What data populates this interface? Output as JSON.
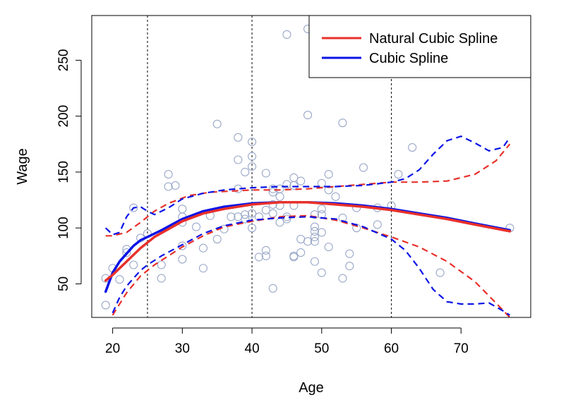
{
  "chart_data": {
    "type": "scatter",
    "xlabel": "Age",
    "ylabel": "Wage",
    "xlim": [
      17,
      80
    ],
    "ylim": [
      20,
      290
    ],
    "x_ticks": [
      20,
      30,
      40,
      50,
      60,
      70
    ],
    "y_ticks": [
      50,
      100,
      150,
      200,
      250
    ],
    "knots": [
      25,
      40,
      60
    ],
    "legend_position": "top-right",
    "legend": [
      {
        "label": "Natural Cubic Spline",
        "color": "#e8302a"
      },
      {
        "label": "Cubic Spline",
        "color": "#0a14e6"
      }
    ],
    "points_color": "#9aa8c8",
    "points": [
      [
        19,
        31
      ],
      [
        19,
        55
      ],
      [
        20,
        64
      ],
      [
        21,
        54
      ],
      [
        22,
        78
      ],
      [
        22,
        81
      ],
      [
        23,
        67
      ],
      [
        23,
        118
      ],
      [
        24,
        91
      ],
      [
        25,
        95
      ],
      [
        27,
        67
      ],
      [
        27,
        55
      ],
      [
        28,
        137
      ],
      [
        28,
        148
      ],
      [
        29,
        138
      ],
      [
        30,
        117
      ],
      [
        30,
        110
      ],
      [
        30,
        105
      ],
      [
        30,
        84
      ],
      [
        30,
        72
      ],
      [
        32,
        101
      ],
      [
        33,
        82
      ],
      [
        33,
        64
      ],
      [
        34,
        111
      ],
      [
        35,
        193
      ],
      [
        35,
        90
      ],
      [
        36,
        99
      ],
      [
        37,
        110
      ],
      [
        38,
        181
      ],
      [
        38,
        161
      ],
      [
        38,
        135
      ],
      [
        38,
        110
      ],
      [
        39,
        112
      ],
      [
        39,
        108
      ],
      [
        39,
        150
      ],
      [
        40,
        177
      ],
      [
        40,
        164
      ],
      [
        40,
        155
      ],
      [
        40,
        113
      ],
      [
        40,
        100
      ],
      [
        41,
        110
      ],
      [
        41,
        74
      ],
      [
        42,
        149
      ],
      [
        42,
        116
      ],
      [
        42,
        80
      ],
      [
        42,
        75
      ],
      [
        43,
        135
      ],
      [
        43,
        132
      ],
      [
        43,
        121
      ],
      [
        43,
        113
      ],
      [
        43,
        46
      ],
      [
        44,
        135
      ],
      [
        44,
        128
      ],
      [
        44,
        120
      ],
      [
        44,
        105
      ],
      [
        45,
        273
      ],
      [
        45,
        139
      ],
      [
        45,
        110
      ],
      [
        45,
        108
      ],
      [
        46,
        145
      ],
      [
        46,
        138
      ],
      [
        46,
        120
      ],
      [
        46,
        75
      ],
      [
        46,
        74
      ],
      [
        47,
        142
      ],
      [
        47,
        78
      ],
      [
        47,
        90
      ],
      [
        48,
        278
      ],
      [
        48,
        201
      ],
      [
        48,
        88
      ],
      [
        49,
        101
      ],
      [
        49,
        97
      ],
      [
        49,
        92
      ],
      [
        49,
        88
      ],
      [
        49,
        70
      ],
      [
        49,
        112
      ],
      [
        50,
        140
      ],
      [
        50,
        117
      ],
      [
        50,
        60
      ],
      [
        50,
        96
      ],
      [
        50,
        112
      ],
      [
        51,
        282
      ],
      [
        51,
        148
      ],
      [
        51,
        134
      ],
      [
        51,
        83
      ],
      [
        52,
        128
      ],
      [
        53,
        194
      ],
      [
        53,
        109
      ],
      [
        53,
        55
      ],
      [
        54,
        77
      ],
      [
        54,
        66
      ],
      [
        55,
        118
      ],
      [
        55,
        100
      ],
      [
        56,
        154
      ],
      [
        58,
        118
      ],
      [
        58,
        103
      ],
      [
        60,
        120
      ],
      [
        61,
        148
      ],
      [
        63,
        172
      ],
      [
        67,
        60
      ],
      [
        77,
        100
      ]
    ],
    "series": [
      {
        "name": "Natural Cubic Spline",
        "color": "#e8302a",
        "x": [
          19,
          20,
          22,
          24,
          26,
          28,
          30,
          33,
          36,
          40,
          44,
          48,
          52,
          56,
          60,
          64,
          68,
          72,
          77
        ],
        "y": [
          53,
          58,
          70,
          82,
          92,
          99,
          106,
          113,
          117,
          121,
          123,
          123,
          121,
          119,
          116,
          112,
          108,
          103,
          97
        ]
      },
      {
        "name": "Cubic Spline",
        "color": "#0a14e6",
        "x": [
          19,
          20,
          21,
          22,
          23,
          24,
          25,
          27,
          30,
          33,
          36,
          40,
          44,
          48,
          52,
          56,
          60,
          64,
          68,
          72,
          77
        ],
        "y": [
          43,
          60,
          70,
          77,
          84,
          89,
          92,
          98,
          108,
          115,
          119,
          122,
          123,
          123,
          122,
          120,
          117,
          113,
          109,
          104,
          98
        ]
      }
    ],
    "confidence_bands": [
      {
        "name": "Natural Cubic Spline upper",
        "color": "#e8302a",
        "x": [
          19,
          20,
          22,
          24,
          26,
          28,
          31,
          34,
          37,
          40,
          44,
          48,
          52,
          56,
          60,
          64,
          68,
          72,
          75,
          77
        ],
        "y": [
          93,
          93,
          96,
          105,
          115,
          122,
          129,
          132,
          133,
          134,
          134,
          135,
          137,
          139,
          141,
          141,
          142,
          148,
          160,
          175
        ]
      },
      {
        "name": "Natural Cubic Spline lower",
        "color": "#e8302a",
        "x": [
          20,
          22,
          24,
          26,
          28,
          30,
          33,
          36,
          40,
          44,
          48,
          52,
          56,
          60,
          64,
          68,
          72,
          75,
          77
        ],
        "y": [
          22,
          42,
          57,
          67,
          75,
          83,
          93,
          101,
          106,
          110,
          111,
          107,
          100,
          92,
          83,
          70,
          52,
          33,
          20
        ]
      },
      {
        "name": "Cubic Spline upper",
        "color": "#0a14e6",
        "x": [
          19,
          20,
          21,
          22,
          23,
          24,
          25,
          26,
          28,
          30,
          33,
          36,
          40,
          44,
          48,
          52,
          56,
          60,
          62,
          64,
          66,
          68,
          70,
          72,
          74,
          76,
          77
        ],
        "y": [
          100,
          94,
          96,
          110,
          118,
          119,
          115,
          112,
          118,
          126,
          131,
          134,
          136,
          137,
          137,
          137,
          138,
          141,
          144,
          152,
          166,
          178,
          182,
          176,
          169,
          172,
          181
        ],
        "dashed": true
      },
      {
        "name": "Cubic Spline lower",
        "color": "#0a14e6",
        "x": [
          20,
          21,
          22,
          23,
          24,
          25,
          27,
          30,
          33,
          36,
          40,
          44,
          48,
          52,
          56,
          60,
          62,
          64,
          66,
          68,
          70,
          72,
          74,
          76,
          77
        ],
        "y": [
          24,
          38,
          48,
          55,
          62,
          67,
          75,
          85,
          95,
          102,
          107,
          109,
          110,
          108,
          101,
          90,
          80,
          64,
          45,
          34,
          32,
          32,
          33,
          26,
          22
        ],
        "dashed": true
      }
    ]
  }
}
